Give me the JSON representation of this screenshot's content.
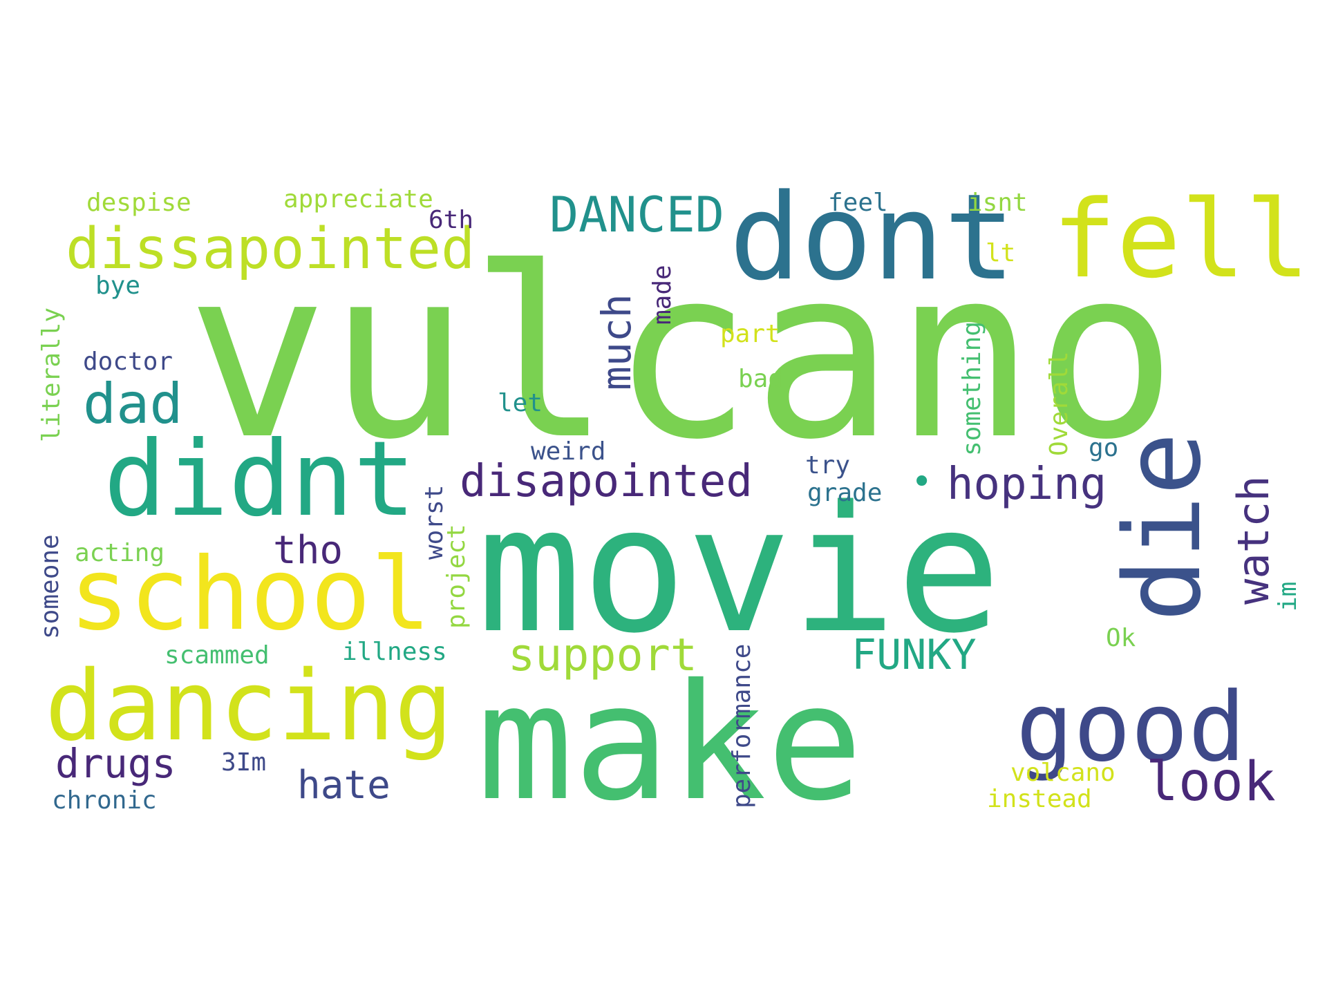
{
  "word_cloud": {
    "colors": {
      "background": "#ffffff",
      "dark_purple": "#482878",
      "purple": "#46327e",
      "indigo": "#3e4989",
      "blue": "#31688e",
      "slate": "#3b528b",
      "teal_blue": "#2c728e",
      "teal": "#21918c",
      "green_teal": "#22a884",
      "sea_green": "#2db27d",
      "green": "#44bf70",
      "lime_green": "#7ad151",
      "light_green": "#93d741",
      "yellow_green": "#bddf26",
      "yellow": "#d2e21b",
      "bright_yellow": "#f2e51d",
      "pale_green": "#a0da39"
    },
    "words": [
      {
        "text": "vulcano",
        "color": "#7ad151"
      },
      {
        "text": "movie",
        "color": "#2db27d"
      },
      {
        "text": "make",
        "color": "#44bf70"
      },
      {
        "text": "dont",
        "color": "#2c728e"
      },
      {
        "text": "fell",
        "color": "#d2e21b"
      },
      {
        "text": "didnt",
        "color": "#22a884"
      },
      {
        "text": "school",
        "color": "#f2e51d"
      },
      {
        "text": "dancing",
        "color": "#d2e21b"
      },
      {
        "text": "die",
        "color": "#3b528b"
      },
      {
        "text": "good",
        "color": "#3e4989"
      },
      {
        "text": "dissapointed",
        "color": "#bddf26"
      },
      {
        "text": "DANCED",
        "color": "#21918c"
      },
      {
        "text": "dad",
        "color": "#21918c"
      },
      {
        "text": "disapointed",
        "color": "#482878"
      },
      {
        "text": "hoping",
        "color": "#46327e"
      },
      {
        "text": "much",
        "color": "#3e4989"
      },
      {
        "text": "tho",
        "color": "#482878"
      },
      {
        "text": "support",
        "color": "#a0da39"
      },
      {
        "text": "FUNKY",
        "color": "#22a884"
      },
      {
        "text": "watch",
        "color": "#46327e"
      },
      {
        "text": "drugs",
        "color": "#482878"
      },
      {
        "text": "hate",
        "color": "#3e4989"
      },
      {
        "text": "look",
        "color": "#482878"
      },
      {
        "text": "despise",
        "color": "#a0da39"
      },
      {
        "text": "appreciate",
        "color": "#a0da39"
      },
      {
        "text": "feel",
        "color": "#2c728e"
      },
      {
        "text": "isnt",
        "color": "#93d741"
      },
      {
        "text": "6th",
        "color": "#482878"
      },
      {
        "text": "lt",
        "color": "#d2e21b"
      },
      {
        "text": "bye",
        "color": "#21918c"
      },
      {
        "text": "literally",
        "color": "#7ad151"
      },
      {
        "text": "made",
        "color": "#482878"
      },
      {
        "text": "something",
        "color": "#44bf70"
      },
      {
        "text": "Overall",
        "color": "#a0da39"
      },
      {
        "text": "part",
        "color": "#d2e21b"
      },
      {
        "text": "doctor",
        "color": "#3e4989"
      },
      {
        "text": "bad",
        "color": "#7ad151"
      },
      {
        "text": "let",
        "color": "#21918c"
      },
      {
        "text": "weird",
        "color": "#3b528b"
      },
      {
        "text": "try",
        "color": "#3b528b"
      },
      {
        "text": "go",
        "color": "#2c728e"
      },
      {
        "text": "grade",
        "color": "#2c728e"
      },
      {
        "text": "worst",
        "color": "#3e4989"
      },
      {
        "text": "someone",
        "color": "#3e4989"
      },
      {
        "text": "acting",
        "color": "#7ad151"
      },
      {
        "text": "project",
        "color": "#93d741"
      },
      {
        "text": "im",
        "color": "#22a884"
      },
      {
        "text": "Ok",
        "color": "#7ad151"
      },
      {
        "text": "performance",
        "color": "#3e4989"
      },
      {
        "text": "scammed",
        "color": "#44bf70"
      },
      {
        "text": "illness",
        "color": "#22a884"
      },
      {
        "text": "3Im",
        "color": "#3e4989"
      },
      {
        "text": "volcano",
        "color": "#d2e21b"
      },
      {
        "text": "instead",
        "color": "#d2e21b"
      },
      {
        "text": "chronic",
        "color": "#31688e"
      },
      {
        "text": "•",
        "color": "#22a884"
      }
    ]
  }
}
